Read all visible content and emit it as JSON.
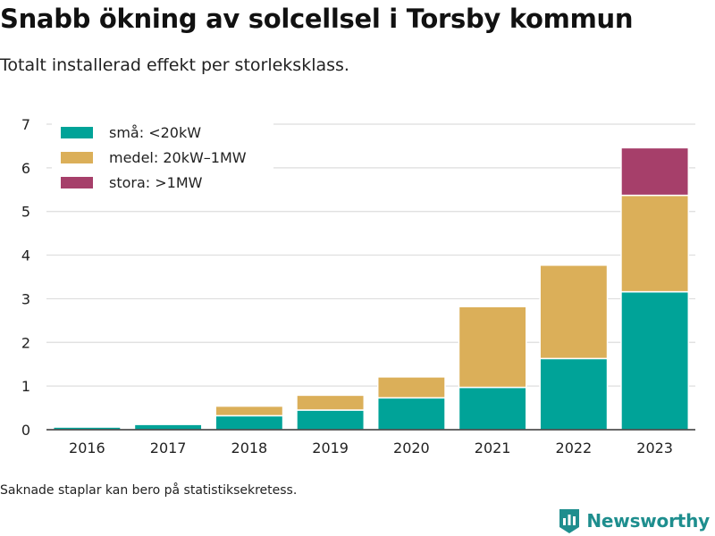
{
  "title": "Snabb ökning av solcellsel i Torsby kommun",
  "subtitle": "Totalt installerad effekt per storleksklass.",
  "footnote": "Saknade staplar kan bero på statistiksekretess.",
  "brand": "Newsworthy",
  "colors": {
    "sma": "#00a398",
    "medel": "#dbaf59",
    "stora": "#a63f6a",
    "brand": "#1e8e8e",
    "grid": "#dddddd"
  },
  "chart_data": {
    "type": "bar",
    "stacked": true,
    "categories": [
      "2016",
      "2017",
      "2018",
      "2019",
      "2020",
      "2021",
      "2022",
      "2023"
    ],
    "series": [
      {
        "name": "små: <20kW",
        "color_key": "sma",
        "values": [
          0.06,
          0.12,
          0.32,
          0.45,
          0.73,
          0.97,
          1.63,
          3.16
        ]
      },
      {
        "name": "medel: 20kW–1MW",
        "color_key": "medel",
        "values": [
          0,
          0,
          0.22,
          0.34,
          0.48,
          1.85,
          2.14,
          2.21
        ]
      },
      {
        "name": "stora: >1MW",
        "color_key": "stora",
        "values": [
          0,
          0,
          0,
          0,
          0,
          0,
          0,
          1.09
        ]
      }
    ],
    "ylim": [
      0,
      7
    ],
    "yticks": [
      0,
      1,
      2,
      3,
      4,
      5,
      6,
      7
    ],
    "grid": true,
    "legend_position": "top-left"
  }
}
